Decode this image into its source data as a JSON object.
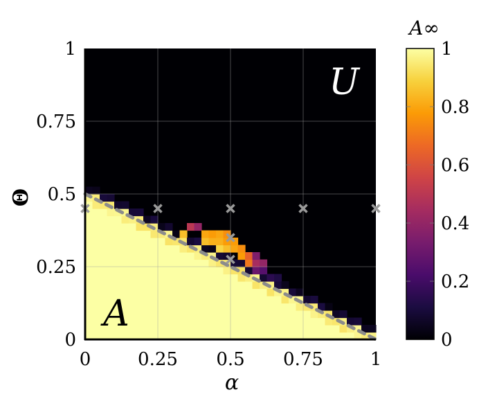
{
  "chart_data": {
    "type": "heatmap",
    "xlabel": "α",
    "ylabel": "Θ",
    "xlim": [
      0,
      1
    ],
    "ylim": [
      0,
      1
    ],
    "x_ticks": [
      "0",
      "0.25",
      "0.5",
      "0.75",
      "1"
    ],
    "y_ticks": [
      "0",
      "0.25",
      "0.5",
      "0.75",
      "1"
    ],
    "grid": true,
    "region_labels": {
      "upper": "U",
      "lower": "A"
    },
    "colorbar": {
      "title": "A∞",
      "range": [
        0,
        1
      ],
      "ticks": [
        "0",
        "0.2",
        "0.4",
        "0.6",
        "0.8",
        "1"
      ],
      "colormap": [
        "#000004",
        "#1b0c41",
        "#4a0c6b",
        "#781c6d",
        "#a52c60",
        "#cf4446",
        "#ed6925",
        "#fb9b06",
        "#f7d13d",
        "#fcffa4"
      ]
    },
    "grid_resolution": {
      "nx": 40,
      "ny": 40
    },
    "boundary_line": {
      "x": [
        0,
        1
      ],
      "y": [
        0.5,
        0
      ]
    },
    "markers": [
      {
        "x": 0,
        "y": 0.45
      },
      {
        "x": 0.25,
        "y": 0.45
      },
      {
        "x": 0.5,
        "y": 0.45
      },
      {
        "x": 0.75,
        "y": 0.45
      },
      {
        "x": 1,
        "y": 0.45
      },
      {
        "x": 0.5,
        "y": 0.35
      },
      {
        "x": 0.5,
        "y": 0.275
      }
    ],
    "transition_cells": [
      {
        "x": 0.35,
        "y": 0.375,
        "value": 0.5
      },
      {
        "x": 0.375,
        "y": 0.375,
        "value": 0.4
      },
      {
        "x": 0.4,
        "y": 0.35,
        "value": 0.8
      },
      {
        "x": 0.425,
        "y": 0.35,
        "value": 0.78
      },
      {
        "x": 0.45,
        "y": 0.35,
        "value": 0.8
      },
      {
        "x": 0.475,
        "y": 0.35,
        "value": 0.75
      },
      {
        "x": 0.4,
        "y": 0.325,
        "value": 0.85
      },
      {
        "x": 0.425,
        "y": 0.325,
        "value": 0.82
      },
      {
        "x": 0.45,
        "y": 0.325,
        "value": 0.82
      },
      {
        "x": 0.475,
        "y": 0.325,
        "value": 0.78
      },
      {
        "x": 0.5,
        "y": 0.325,
        "value": 0.78
      },
      {
        "x": 0.45,
        "y": 0.3,
        "value": 0.9
      },
      {
        "x": 0.475,
        "y": 0.3,
        "value": 0.85
      },
      {
        "x": 0.5,
        "y": 0.3,
        "value": 0.8
      },
      {
        "x": 0.525,
        "y": 0.3,
        "value": 0.75
      },
      {
        "x": 0.525,
        "y": 0.275,
        "value": 0.78
      },
      {
        "x": 0.55,
        "y": 0.275,
        "value": 0.65
      },
      {
        "x": 0.575,
        "y": 0.275,
        "value": 0.35
      },
      {
        "x": 0.55,
        "y": 0.25,
        "value": 0.7
      },
      {
        "x": 0.575,
        "y": 0.25,
        "value": 0.45
      },
      {
        "x": 0.6,
        "y": 0.25,
        "value": 0.4
      },
      {
        "x": 0.575,
        "y": 0.225,
        "value": 0.3
      },
      {
        "x": 0.6,
        "y": 0.225,
        "value": 0.25
      },
      {
        "x": 0.625,
        "y": 0.2,
        "value": 0.15
      },
      {
        "x": 0.65,
        "y": 0.2,
        "value": 0.12
      },
      {
        "x": 0.325,
        "y": 0.35,
        "value": 0.85
      }
    ]
  }
}
